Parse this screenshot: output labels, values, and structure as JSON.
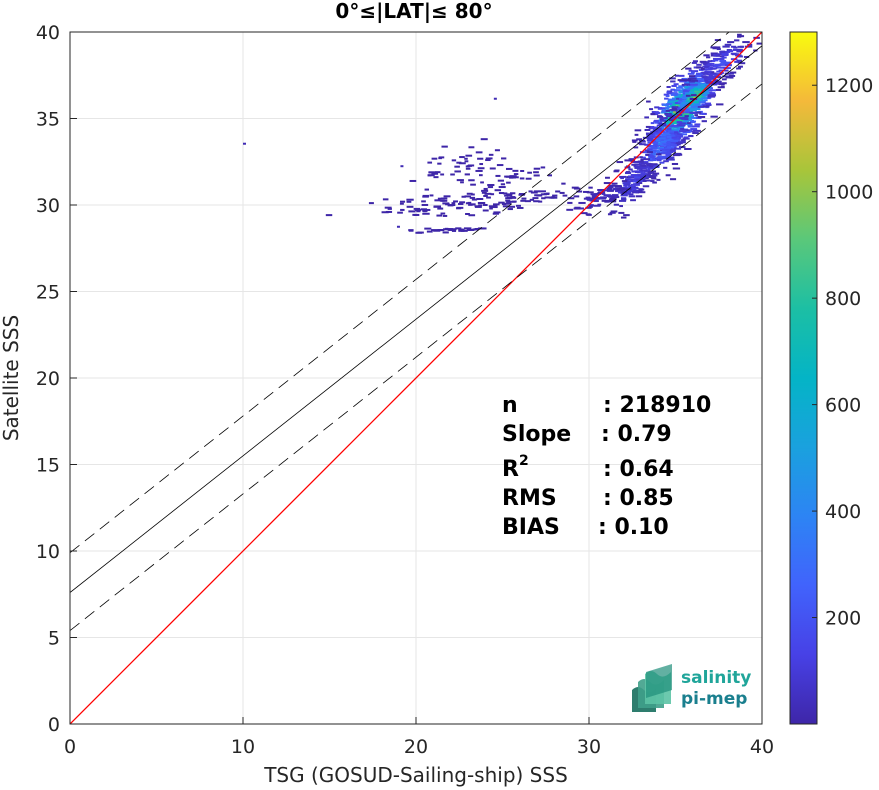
{
  "chart_data": {
    "type": "heatmap",
    "title": "0°≤|LAT|≤ 80°",
    "xlabel": "TSG (GOSUD-Sailing-ship) SSS",
    "ylabel": "Satellite SSS",
    "xlim": [
      0,
      40
    ],
    "ylim": [
      0,
      40
    ],
    "xticks": [
      "0",
      "10",
      "20",
      "30",
      "40"
    ],
    "yticks": [
      "0",
      "5",
      "10",
      "15",
      "20",
      "25",
      "30",
      "35",
      "40"
    ],
    "grid": true,
    "colorbar": {
      "min": 0,
      "max": 1300,
      "ticks": [
        "200",
        "400",
        "600",
        "800",
        "1000",
        "1200"
      ],
      "colormap": "parula"
    },
    "lines": [
      {
        "kind": "one-to-one",
        "color": "#ff0000",
        "points": [
          [
            0,
            0
          ],
          [
            40,
            40
          ]
        ]
      },
      {
        "kind": "regression",
        "color": "#000000",
        "dash": "solid",
        "points": [
          [
            0,
            7.6
          ],
          [
            40,
            39.2
          ]
        ]
      },
      {
        "kind": "regression-upper",
        "color": "#000000",
        "dash": "dashed",
        "points": [
          [
            0,
            9.9
          ],
          [
            40,
            41.5
          ]
        ]
      },
      {
        "kind": "regression-lower",
        "color": "#000000",
        "dash": "dashed",
        "points": [
          [
            0,
            5.4
          ],
          [
            40,
            37.0
          ]
        ]
      }
    ],
    "stats": [
      {
        "label": "n",
        "value": ": 218910"
      },
      {
        "label": "Slope",
        "value": ": 0.79"
      },
      {
        "label": "R",
        "sup": "2",
        "value": ": 0.64"
      },
      {
        "label": "RMS",
        "value": ": 0.85"
      },
      {
        "label": "BIAS",
        "value": ": 0.10"
      }
    ],
    "density_clusters": [
      {
        "x": 35.2,
        "y": 35.6,
        "sx": 0.9,
        "sy": 1.5,
        "n": 700,
        "weight": 1.0
      },
      {
        "x": 36.0,
        "y": 36.4,
        "sx": 0.55,
        "sy": 0.7,
        "n": 220,
        "weight": 1.0
      },
      {
        "x": 34.0,
        "y": 33.5,
        "sx": 0.8,
        "sy": 1.3,
        "n": 260,
        "weight": 0.35
      },
      {
        "x": 32.4,
        "y": 31.4,
        "sx": 0.7,
        "sy": 1.0,
        "n": 140,
        "weight": 0.15
      },
      {
        "x": 37.5,
        "y": 38.2,
        "sx": 0.8,
        "sy": 0.9,
        "n": 140,
        "weight": 0.2
      },
      {
        "x": 30.5,
        "y": 30.5,
        "sx": 0.8,
        "sy": 0.6,
        "n": 60,
        "weight": 0.05
      },
      {
        "x": 24.0,
        "y": 30.3,
        "sx": 3.0,
        "sy": 0.6,
        "n": 150,
        "weight": 0.0
      },
      {
        "x": 22.0,
        "y": 32.3,
        "sx": 1.2,
        "sy": 0.9,
        "n": 45,
        "weight": 0.0
      },
      {
        "x": 21.8,
        "y": 28.6,
        "sx": 1.2,
        "sy": 0.1,
        "n": 30,
        "weight": 0.0
      },
      {
        "x": 25.0,
        "y": 31.8,
        "sx": 1.5,
        "sy": 0.5,
        "n": 30,
        "weight": 0.0
      }
    ],
    "isolated_points": [
      [
        10.0,
        33.6
      ],
      [
        19.1,
        32.3
      ],
      [
        18.9,
        28.8
      ],
      [
        24.5,
        36.2
      ]
    ]
  },
  "logo": {
    "line1": "salinity",
    "line2": "pi-mep"
  }
}
